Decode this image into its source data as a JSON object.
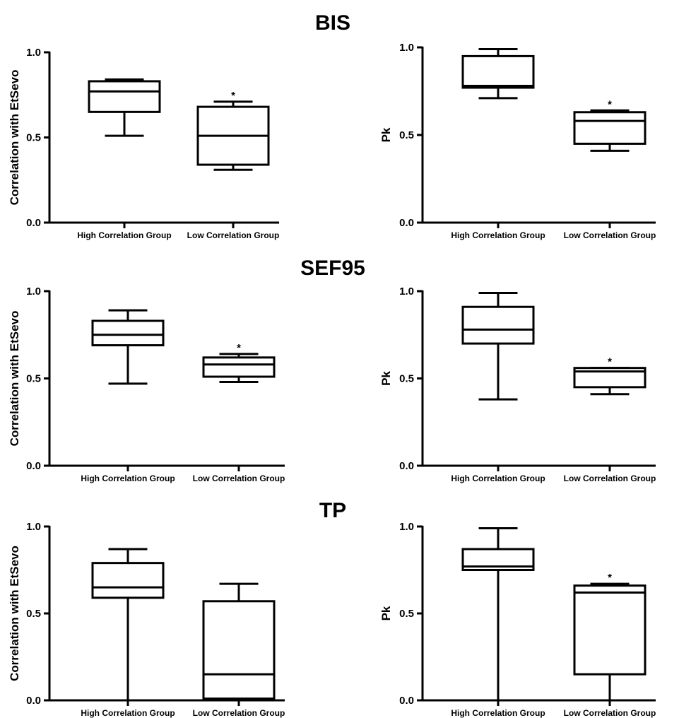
{
  "row_titles": [
    "BIS",
    "SEF95",
    "TP"
  ],
  "colors": {
    "ink": "#000000",
    "background": "#ffffff"
  },
  "chart_data": [
    {
      "type": "box",
      "row_title": "BIS",
      "categories": [
        "High Correlation Group",
        "Low Correlation Group"
      ],
      "ylabel": "Correlation with EtSevo",
      "ylim": [
        0,
        1
      ],
      "yticks": [
        0,
        0.5,
        1
      ],
      "ytick_labels": [
        "0.0",
        "0.5",
        "1.0"
      ],
      "boxes": [
        {
          "category": "High Correlation Group",
          "min": 0.51,
          "q1": 0.65,
          "median": 0.77,
          "q3": 0.83,
          "max": 0.84,
          "significance": ""
        },
        {
          "category": "Low Correlation Group",
          "min": 0.31,
          "q1": 0.34,
          "median": 0.51,
          "q3": 0.68,
          "max": 0.71,
          "significance": "*"
        }
      ]
    },
    {
      "type": "box",
      "row_title": "BIS",
      "categories": [
        "High Correlation Group",
        "Low Correlation Group"
      ],
      "ylabel": "Pk",
      "ylim": [
        0,
        1
      ],
      "yticks": [
        0,
        0.5,
        1
      ],
      "ytick_labels": [
        "0.0",
        "0.5",
        "1.0"
      ],
      "boxes": [
        {
          "category": "High Correlation Group",
          "min": 0.71,
          "q1": 0.77,
          "median": 0.78,
          "q3": 0.95,
          "max": 0.99,
          "significance": ""
        },
        {
          "category": "Low Correlation Group",
          "min": 0.41,
          "q1": 0.45,
          "median": 0.58,
          "q3": 0.63,
          "max": 0.64,
          "significance": "*"
        }
      ]
    },
    {
      "type": "box",
      "row_title": "SEF95",
      "categories": [
        "High Correlation Group",
        "Low Correlation Group"
      ],
      "ylabel": "Correlation with EtSevo",
      "ylim": [
        0,
        1
      ],
      "yticks": [
        0,
        0.5,
        1
      ],
      "ytick_labels": [
        "0.0",
        "0.5",
        "1.0"
      ],
      "boxes": [
        {
          "category": "High Correlation Group",
          "min": 0.47,
          "q1": 0.69,
          "median": 0.75,
          "q3": 0.83,
          "max": 0.89,
          "significance": ""
        },
        {
          "category": "Low Correlation Group",
          "min": 0.48,
          "q1": 0.51,
          "median": 0.58,
          "q3": 0.62,
          "max": 0.64,
          "significance": "*"
        }
      ]
    },
    {
      "type": "box",
      "row_title": "SEF95",
      "categories": [
        "High Correlation Group",
        "Low Correlation Group"
      ],
      "ylabel": "Pk",
      "ylim": [
        0,
        1
      ],
      "yticks": [
        0,
        0.5,
        1
      ],
      "ytick_labels": [
        "0.0",
        "0.5",
        "1.0"
      ],
      "boxes": [
        {
          "category": "High Correlation Group",
          "min": 0.38,
          "q1": 0.7,
          "median": 0.78,
          "q3": 0.91,
          "max": 0.99,
          "significance": ""
        },
        {
          "category": "Low Correlation Group",
          "min": 0.41,
          "q1": 0.45,
          "median": 0.54,
          "q3": 0.56,
          "max": 0.56,
          "significance": "*"
        }
      ]
    },
    {
      "type": "box",
      "row_title": "TP",
      "categories": [
        "High Correlation Group",
        "Low Correlation Group"
      ],
      "ylabel": "Correlation with EtSevo",
      "ylim": [
        0,
        1
      ],
      "yticks": [
        0,
        0.5,
        1
      ],
      "ytick_labels": [
        "0.0",
        "0.5",
        "1.0"
      ],
      "boxes": [
        {
          "category": "High Correlation Group",
          "min": 0.0,
          "q1": 0.59,
          "median": 0.65,
          "q3": 0.79,
          "max": 0.87,
          "significance": ""
        },
        {
          "category": "Low Correlation Group",
          "min": 0.0,
          "q1": 0.01,
          "median": 0.15,
          "q3": 0.57,
          "max": 0.67,
          "significance": ""
        }
      ]
    },
    {
      "type": "box",
      "row_title": "TP",
      "categories": [
        "High Correlation Group",
        "Low Correlation Group"
      ],
      "ylabel": "Pk",
      "ylim": [
        0,
        1
      ],
      "yticks": [
        0,
        0.5,
        1
      ],
      "ytick_labels": [
        "0.0",
        "0.5",
        "1.0"
      ],
      "boxes": [
        {
          "category": "High Correlation Group",
          "min": 0.0,
          "q1": 0.75,
          "median": 0.77,
          "q3": 0.87,
          "max": 0.99,
          "significance": ""
        },
        {
          "category": "Low Correlation Group",
          "min": 0.0,
          "q1": 0.15,
          "median": 0.62,
          "q3": 0.66,
          "max": 0.67,
          "significance": "*"
        }
      ]
    }
  ]
}
